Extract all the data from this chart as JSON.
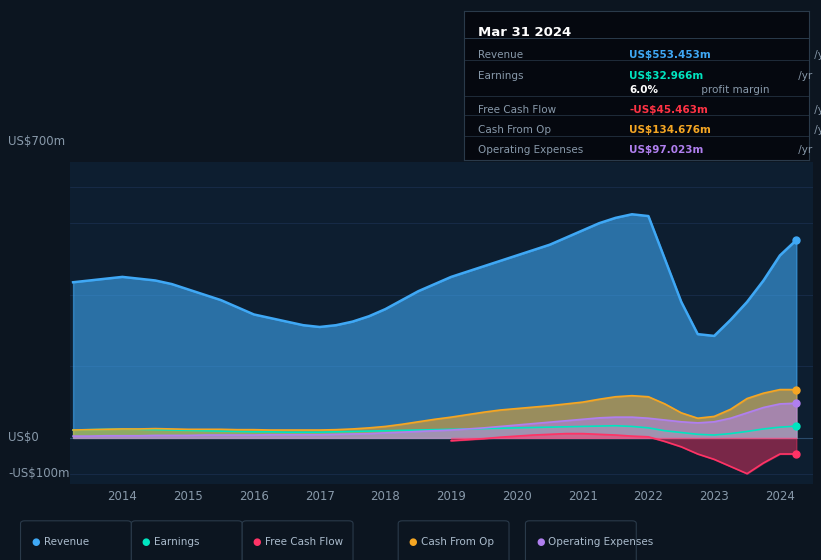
{
  "bg_color": "#0c1520",
  "plot_bg_color": "#0d1e30",
  "grid_color": "#1a3050",
  "title_box": {
    "date": "Mar 31 2024",
    "rows": [
      {
        "label": "Revenue",
        "value": "US$553.453m",
        "unit": " /yr",
        "value_color": "#3fa8f5"
      },
      {
        "label": "Earnings",
        "value": "US$32.966m",
        "unit": " /yr",
        "value_color": "#00e5c0"
      },
      {
        "label": "",
        "value": "6.0%",
        "unit": " profit margin",
        "value_color": "#ffffff"
      },
      {
        "label": "Free Cash Flow",
        "value": "-US$45.463m",
        "unit": " /yr",
        "value_color": "#ff3344"
      },
      {
        "label": "Cash From Op",
        "value": "US$134.676m",
        "unit": " /yr",
        "value_color": "#f5a623"
      },
      {
        "label": "Operating Expenses",
        "value": "US$97.023m",
        "unit": " /yr",
        "value_color": "#b07fef"
      }
    ]
  },
  "ylabel_top": "US$700m",
  "ylabel_zero": "US$0",
  "ylabel_neg": "-US$100m",
  "xlim": [
    2013.2,
    2024.5
  ],
  "ylim": [
    -130,
    770
  ],
  "years": [
    2013.25,
    2013.5,
    2013.75,
    2014.0,
    2014.25,
    2014.5,
    2014.75,
    2015.0,
    2015.25,
    2015.5,
    2015.75,
    2016.0,
    2016.25,
    2016.5,
    2016.75,
    2017.0,
    2017.25,
    2017.5,
    2017.75,
    2018.0,
    2018.25,
    2018.5,
    2018.75,
    2019.0,
    2019.25,
    2019.5,
    2019.75,
    2020.0,
    2020.25,
    2020.5,
    2020.75,
    2021.0,
    2021.25,
    2021.5,
    2021.75,
    2022.0,
    2022.25,
    2022.5,
    2022.75,
    2023.0,
    2023.25,
    2023.5,
    2023.75,
    2024.0,
    2024.25
  ],
  "revenue": [
    435,
    440,
    445,
    450,
    445,
    440,
    430,
    415,
    400,
    385,
    365,
    345,
    335,
    325,
    315,
    310,
    315,
    325,
    340,
    360,
    385,
    410,
    430,
    450,
    465,
    480,
    495,
    510,
    525,
    540,
    560,
    580,
    600,
    615,
    625,
    620,
    500,
    380,
    290,
    285,
    330,
    380,
    440,
    510,
    553
  ],
  "earnings": [
    22,
    23,
    24,
    25,
    24,
    23,
    22,
    21,
    20,
    19,
    18,
    17,
    17,
    16,
    16,
    16,
    17,
    18,
    19,
    20,
    21,
    22,
    23,
    24,
    25,
    26,
    27,
    28,
    29,
    30,
    31,
    32,
    33,
    34,
    32,
    28,
    20,
    15,
    10,
    8,
    12,
    18,
    25,
    30,
    33
  ],
  "free_cash_flow": [
    null,
    null,
    null,
    null,
    null,
    null,
    null,
    null,
    null,
    null,
    null,
    null,
    null,
    null,
    null,
    null,
    null,
    null,
    null,
    null,
    null,
    null,
    null,
    -8,
    -5,
    -2,
    2,
    5,
    8,
    10,
    12,
    12,
    10,
    8,
    5,
    3,
    -10,
    -25,
    -45,
    -60,
    -80,
    -100,
    -70,
    -45,
    -45
  ],
  "cash_from_op": [
    22,
    23,
    24,
    25,
    25,
    26,
    25,
    24,
    24,
    24,
    23,
    23,
    22,
    22,
    22,
    22,
    23,
    25,
    28,
    32,
    38,
    45,
    52,
    58,
    65,
    72,
    78,
    82,
    86,
    90,
    95,
    100,
    108,
    115,
    118,
    115,
    95,
    70,
    55,
    60,
    80,
    110,
    125,
    135,
    135
  ],
  "op_expenses": [
    5,
    5,
    6,
    6,
    6,
    7,
    7,
    7,
    8,
    8,
    8,
    8,
    9,
    9,
    9,
    9,
    10,
    11,
    12,
    14,
    16,
    18,
    20,
    22,
    25,
    28,
    32,
    36,
    40,
    44,
    48,
    52,
    56,
    58,
    58,
    55,
    50,
    45,
    42,
    45,
    55,
    70,
    85,
    95,
    97
  ],
  "revenue_color": "#3fa8f5",
  "earnings_color": "#00e5c0",
  "fcf_color": "#ff3366",
  "cfop_color": "#f5a623",
  "opex_color": "#b07fef",
  "legend_items": [
    {
      "label": "Revenue",
      "color": "#3fa8f5"
    },
    {
      "label": "Earnings",
      "color": "#00e5c0"
    },
    {
      "label": "Free Cash Flow",
      "color": "#ff3366"
    },
    {
      "label": "Cash From Op",
      "color": "#f5a623"
    },
    {
      "label": "Operating Expenses",
      "color": "#b07fef"
    }
  ]
}
